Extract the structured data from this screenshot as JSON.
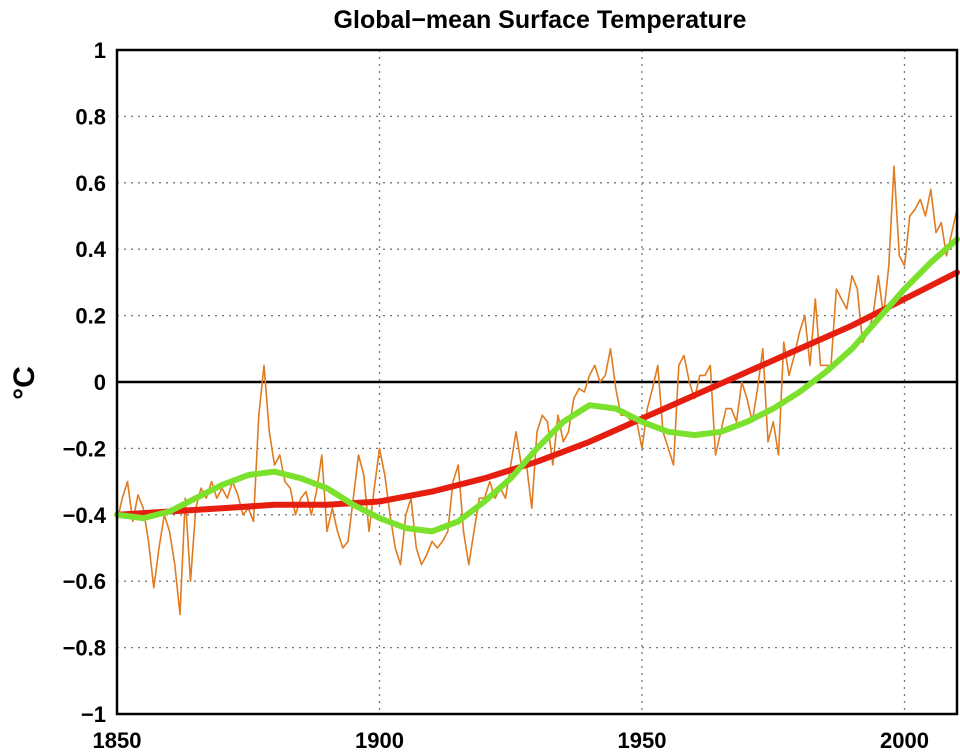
{
  "chart_data": {
    "type": "line",
    "title": "Global−mean Surface Temperature",
    "ylabel": "°C",
    "xlabel": "",
    "xlim": [
      1850,
      2010
    ],
    "ylim": [
      -1,
      1
    ],
    "x_ticks": [
      1850,
      1900,
      1950,
      2000
    ],
    "x_tick_labels": [
      "1850",
      "1900",
      "1950",
      "2000"
    ],
    "y_ticks": [
      -1,
      -0.8,
      -0.6,
      -0.4,
      -0.2,
      0,
      0.2,
      0.4,
      0.6,
      0.8,
      1
    ],
    "y_tick_labels": [
      "−1",
      "−0.8",
      "−0.6",
      "−0.4",
      "−0.2",
      "0",
      "0.2",
      "0.4",
      "0.6",
      "0.8",
      "1"
    ],
    "grid": true,
    "zero_line": true,
    "series": [
      {
        "color": "#e07b20",
        "style": "thin",
        "x": [
          1850,
          1851,
          1852,
          1853,
          1854,
          1855,
          1856,
          1857,
          1858,
          1859,
          1860,
          1861,
          1862,
          1863,
          1864,
          1865,
          1866,
          1867,
          1868,
          1869,
          1870,
          1871,
          1872,
          1873,
          1874,
          1875,
          1876,
          1877,
          1878,
          1879,
          1880,
          1881,
          1882,
          1883,
          1884,
          1885,
          1886,
          1887,
          1888,
          1889,
          1890,
          1891,
          1892,
          1893,
          1894,
          1895,
          1896,
          1897,
          1898,
          1899,
          1900,
          1901,
          1902,
          1903,
          1904,
          1905,
          1906,
          1907,
          1908,
          1909,
          1910,
          1911,
          1912,
          1913,
          1914,
          1915,
          1916,
          1917,
          1918,
          1919,
          1920,
          1921,
          1922,
          1923,
          1924,
          1925,
          1926,
          1927,
          1928,
          1929,
          1930,
          1931,
          1932,
          1933,
          1934,
          1935,
          1936,
          1937,
          1938,
          1939,
          1940,
          1941,
          1942,
          1943,
          1944,
          1945,
          1946,
          1947,
          1948,
          1949,
          1950,
          1951,
          1952,
          1953,
          1954,
          1955,
          1956,
          1957,
          1958,
          1959,
          1960,
          1961,
          1962,
          1963,
          1964,
          1965,
          1966,
          1967,
          1968,
          1969,
          1970,
          1971,
          1972,
          1973,
          1974,
          1975,
          1976,
          1977,
          1978,
          1979,
          1980,
          1981,
          1982,
          1983,
          1984,
          1985,
          1986,
          1987,
          1988,
          1989,
          1990,
          1991,
          1992,
          1993,
          1994,
          1995,
          1996,
          1997,
          1998,
          1999,
          2000,
          2001,
          2002,
          2003,
          2004,
          2005,
          2006,
          2007,
          2008,
          2009,
          2010
        ],
        "y": [
          -0.42,
          -0.35,
          -0.3,
          -0.42,
          -0.34,
          -0.38,
          -0.48,
          -0.62,
          -0.5,
          -0.4,
          -0.45,
          -0.55,
          -0.7,
          -0.35,
          -0.6,
          -0.38,
          -0.32,
          -0.35,
          -0.3,
          -0.35,
          -0.32,
          -0.35,
          -0.3,
          -0.34,
          -0.4,
          -0.38,
          -0.42,
          -0.1,
          0.05,
          -0.15,
          -0.25,
          -0.22,
          -0.3,
          -0.32,
          -0.4,
          -0.35,
          -0.33,
          -0.4,
          -0.33,
          -0.22,
          -0.45,
          -0.38,
          -0.45,
          -0.5,
          -0.48,
          -0.35,
          -0.22,
          -0.28,
          -0.45,
          -0.32,
          -0.2,
          -0.28,
          -0.4,
          -0.5,
          -0.55,
          -0.4,
          -0.35,
          -0.5,
          -0.55,
          -0.52,
          -0.48,
          -0.5,
          -0.48,
          -0.45,
          -0.3,
          -0.25,
          -0.45,
          -0.55,
          -0.45,
          -0.35,
          -0.35,
          -0.3,
          -0.35,
          -0.32,
          -0.35,
          -0.25,
          -0.15,
          -0.25,
          -0.25,
          -0.38,
          -0.15,
          -0.1,
          -0.12,
          -0.25,
          -0.1,
          -0.18,
          -0.15,
          -0.05,
          -0.02,
          -0.03,
          0.02,
          0.05,
          0.0,
          0.02,
          0.1,
          -0.02,
          -0.1,
          -0.1,
          -0.12,
          -0.12,
          -0.2,
          -0.08,
          -0.02,
          0.05,
          -0.15,
          -0.2,
          -0.25,
          0.05,
          0.08,
          0.0,
          -0.05,
          0.02,
          0.02,
          0.05,
          -0.22,
          -0.15,
          -0.08,
          -0.08,
          -0.12,
          0.0,
          -0.05,
          -0.12,
          -0.02,
          0.1,
          -0.18,
          -0.12,
          -0.22,
          0.12,
          0.02,
          0.08,
          0.15,
          0.2,
          0.05,
          0.25,
          0.05,
          0.05,
          0.05,
          0.28,
          0.25,
          0.22,
          0.32,
          0.28,
          0.12,
          0.15,
          0.2,
          0.32,
          0.2,
          0.35,
          0.65,
          0.38,
          0.35,
          0.5,
          0.52,
          0.55,
          0.5,
          0.58,
          0.45,
          0.48,
          0.38,
          0.45,
          0.52
        ]
      },
      {
        "color": "#e61e10",
        "style": "thick",
        "x": [
          1850,
          1860,
          1870,
          1880,
          1890,
          1900,
          1910,
          1920,
          1930,
          1940,
          1950,
          1960,
          1970,
          1980,
          1990,
          2000,
          2010
        ],
        "y": [
          -0.4,
          -0.39,
          -0.38,
          -0.37,
          -0.37,
          -0.36,
          -0.33,
          -0.29,
          -0.24,
          -0.18,
          -0.11,
          -0.04,
          0.03,
          0.1,
          0.17,
          0.25,
          0.33
        ]
      },
      {
        "color": "#7be12d",
        "style": "thick",
        "x": [
          1850,
          1855,
          1860,
          1865,
          1870,
          1875,
          1880,
          1885,
          1890,
          1895,
          1900,
          1905,
          1910,
          1915,
          1920,
          1925,
          1930,
          1935,
          1940,
          1945,
          1950,
          1955,
          1960,
          1965,
          1970,
          1975,
          1980,
          1985,
          1990,
          1995,
          2000,
          2005,
          2010
        ],
        "y": [
          -0.4,
          -0.41,
          -0.39,
          -0.35,
          -0.31,
          -0.28,
          -0.27,
          -0.29,
          -0.32,
          -0.37,
          -0.41,
          -0.44,
          -0.45,
          -0.42,
          -0.36,
          -0.29,
          -0.2,
          -0.12,
          -0.07,
          -0.08,
          -0.12,
          -0.15,
          -0.16,
          -0.15,
          -0.12,
          -0.08,
          -0.03,
          0.03,
          0.1,
          0.19,
          0.28,
          0.36,
          0.43
        ]
      }
    ]
  }
}
